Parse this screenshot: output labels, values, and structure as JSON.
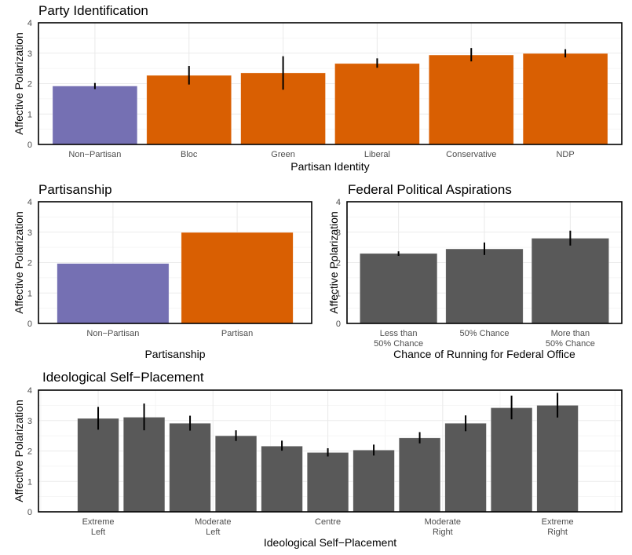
{
  "colors": {
    "non_partisan": "#7570b3",
    "partisan": "#d95f02",
    "neutral_bar": "#595959",
    "error_bar": "#000000"
  },
  "chart_data": [
    {
      "id": "party",
      "type": "bar",
      "title": "Party Identification",
      "xlabel": "Partisan Identity",
      "ylabel": "Affective Polarization",
      "ylim": [
        0,
        4
      ],
      "yticks": [
        "0",
        "1",
        "2",
        "3",
        "4"
      ],
      "grid": true,
      "categories": [
        "Non−Partisan",
        "Bloc",
        "Green",
        "Liberal",
        "Conservative",
        "NDP"
      ],
      "values": [
        1.92,
        2.27,
        2.35,
        2.66,
        2.94,
        2.99
      ],
      "error_low": [
        1.82,
        1.97,
        1.8,
        2.52,
        2.73,
        2.86
      ],
      "error_high": [
        2.02,
        2.58,
        2.9,
        2.83,
        3.17,
        3.13
      ],
      "bar_colors": [
        "#7570b3",
        "#d95f02",
        "#d95f02",
        "#d95f02",
        "#d95f02",
        "#d95f02"
      ]
    },
    {
      "id": "partisanship",
      "type": "bar",
      "title": "Partisanship",
      "xlabel": "Partisanship",
      "ylabel": "Affective Polarization",
      "ylim": [
        0,
        4
      ],
      "yticks": [
        "0",
        "1",
        "2",
        "3",
        "4"
      ],
      "grid": true,
      "categories": [
        "Non−Partisan",
        "Partisan"
      ],
      "values": [
        1.97,
        2.99
      ],
      "error_low": [
        null,
        null
      ],
      "error_high": [
        null,
        null
      ],
      "bar_colors": [
        "#7570b3",
        "#d95f02"
      ]
    },
    {
      "id": "federal",
      "type": "bar",
      "title": "Federal Political Aspirations",
      "xlabel": "Chance of Running for Federal Office",
      "ylabel": "Affective Polarization",
      "ylim": [
        0,
        4
      ],
      "yticks": [
        "0",
        "1",
        "2",
        "3",
        "4"
      ],
      "grid": true,
      "categories": [
        [
          "Less than",
          "50% Chance"
        ],
        [
          "50% Chance"
        ],
        [
          "More than",
          "50% Chance"
        ]
      ],
      "values": [
        2.3,
        2.45,
        2.8
      ],
      "error_low": [
        2.22,
        2.25,
        2.56
      ],
      "error_high": [
        2.37,
        2.66,
        3.05
      ],
      "bar_colors": [
        "#595959",
        "#595959",
        "#595959"
      ]
    },
    {
      "id": "ideology",
      "type": "bar",
      "title": "Ideological Self−Placement",
      "xlabel": "Ideological Self−Placement",
      "ylabel": "Affective Polarization",
      "ylim": [
        0,
        4
      ],
      "xlim": [
        -1.3,
        11.4
      ],
      "yticks": [
        "0",
        "1",
        "2",
        "3",
        "4"
      ],
      "grid": true,
      "x": [
        0,
        1,
        2,
        3,
        4,
        5,
        6,
        7,
        8,
        9,
        10
      ],
      "values": [
        3.07,
        3.11,
        2.91,
        2.5,
        2.16,
        1.95,
        2.03,
        2.43,
        2.91,
        3.42,
        3.5
      ],
      "error_low": [
        2.7,
        2.68,
        2.67,
        2.33,
        2.01,
        1.82,
        1.85,
        2.25,
        2.65,
        3.04,
        3.1
      ],
      "error_high": [
        3.45,
        3.56,
        3.16,
        2.68,
        2.34,
        2.09,
        2.21,
        2.62,
        3.17,
        3.82,
        3.91
      ],
      "xtick_positions": [
        0,
        2.5,
        5,
        7.5,
        10
      ],
      "xtick_labels": [
        [
          "Extreme",
          "Left"
        ],
        [
          "Moderate",
          "Left"
        ],
        [
          "Centre"
        ],
        [
          "Moderate",
          "Right"
        ],
        [
          "Extreme",
          "Right"
        ]
      ],
      "bar_colors": [
        "#595959",
        "#595959",
        "#595959",
        "#595959",
        "#595959",
        "#595959",
        "#595959",
        "#595959",
        "#595959",
        "#595959",
        "#595959"
      ]
    }
  ]
}
